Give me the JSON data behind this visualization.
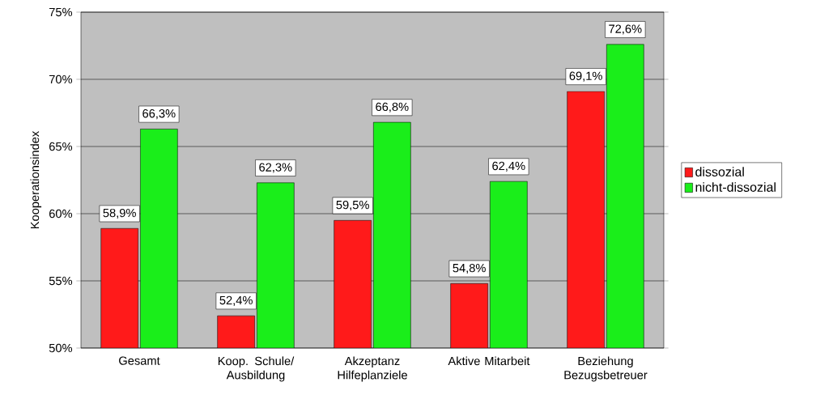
{
  "chart_data": {
    "type": "bar",
    "ylabel": "Kooperationsindex",
    "categories": [
      "Gesamt",
      "Koop. Schule/ Ausbildung",
      "Akzeptanz Hilfeplanziele",
      "Aktive Mitarbeit",
      "Beziehung Bezugsbetreuer"
    ],
    "series": [
      {
        "name": "dissozial",
        "color": "#ff1a1a",
        "values": [
          58.9,
          52.4,
          59.5,
          54.8,
          69.1
        ],
        "value_labels": [
          "58,9%",
          "52,4%",
          "59,5%",
          "54,8%",
          "69,1%"
        ]
      },
      {
        "name": "nicht-dissozial",
        "color": "#1aee1a",
        "values": [
          66.3,
          62.3,
          66.8,
          62.4,
          72.6
        ],
        "value_labels": [
          "66,3%",
          "62,3%",
          "66,8%",
          "62,4%",
          "72,6%"
        ]
      }
    ],
    "ylim": [
      50,
      75
    ],
    "yticks": [
      {
        "value": 50,
        "label": "50%"
      },
      {
        "value": 55,
        "label": "55%"
      },
      {
        "value": 60,
        "label": "60%"
      },
      {
        "value": 65,
        "label": "65%"
      },
      {
        "value": 70,
        "label": "70%"
      },
      {
        "value": 75,
        "label": "75%"
      }
    ],
    "grid": "y",
    "legend": "right"
  }
}
